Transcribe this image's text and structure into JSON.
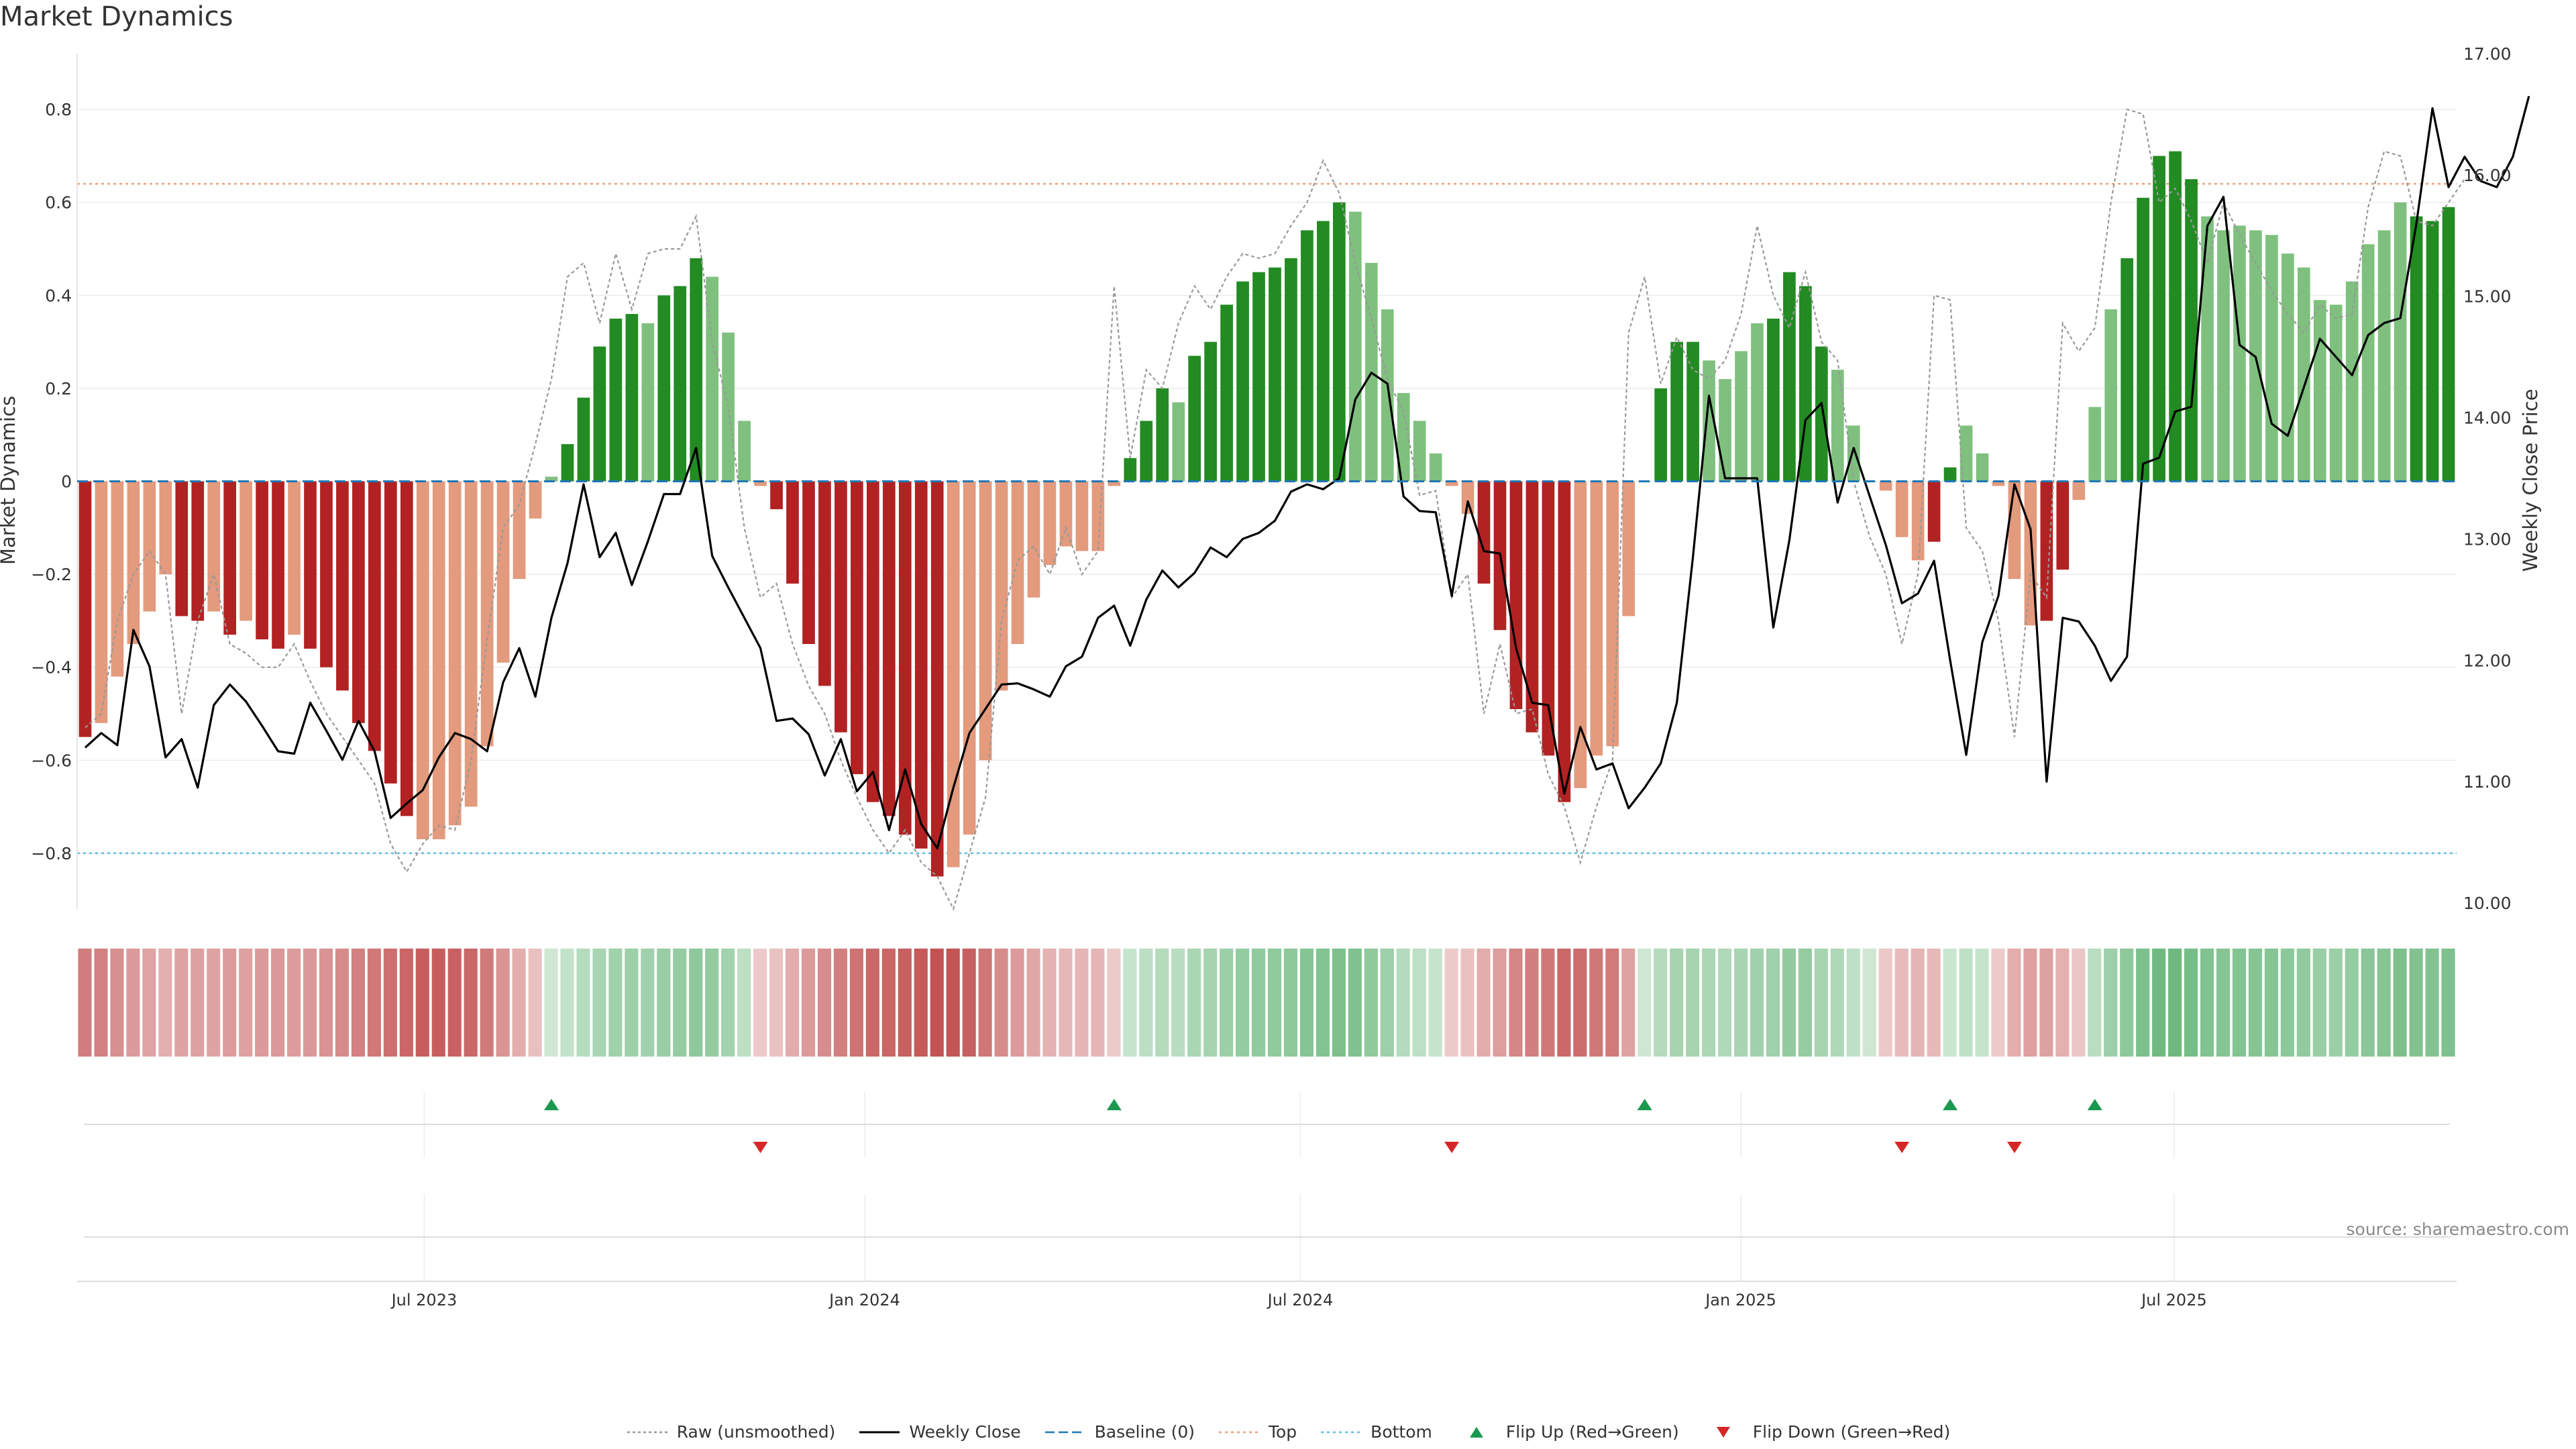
{
  "title": "Market Dynamics",
  "source": "source: sharemaestro.com",
  "colors": {
    "green_strong": "#228b22",
    "green_light": "#7fc07f",
    "red_strong": "#b22222",
    "red_light": "#e39a7d",
    "price": "#000000",
    "raw": "#999999",
    "baseline": "#1f77b4",
    "top": "#e8a07e",
    "bottom": "#5bc0de",
    "flip_up": "#1a9850",
    "flip_down": "#d62728"
  },
  "legend": [
    {
      "key": "raw",
      "label": "Raw (unsmoothed)"
    },
    {
      "key": "price",
      "label": "Weekly Close"
    },
    {
      "key": "baseline",
      "label": "Baseline (0)"
    },
    {
      "key": "top",
      "label": "Top"
    },
    {
      "key": "bottom",
      "label": "Bottom"
    },
    {
      "key": "flip_up",
      "label": "Flip Up (Red→Green)"
    },
    {
      "key": "flip_down",
      "label": "Flip Down (Green→Red)"
    }
  ],
  "chart_data": {
    "type": "bar",
    "title": "Market Dynamics",
    "ylabel": "Market Dynamics",
    "y2label": "Weekly Close Price",
    "ylim": [
      -0.92,
      0.92
    ],
    "y2lim": [
      9.95,
      17.0
    ],
    "yticks": [
      -0.8,
      -0.6,
      -0.4,
      -0.2,
      0,
      0.2,
      0.4,
      0.6,
      0.8
    ],
    "yticklabels": [
      "−0.8",
      "−0.6",
      "−0.4",
      "−0.2",
      "0",
      "0.2",
      "0.4",
      "0.6",
      "0.8"
    ],
    "y2ticks": [
      10,
      11,
      12,
      13,
      14,
      15,
      16,
      17
    ],
    "y2ticklabels": [
      "10.00",
      "11.00",
      "12.00",
      "13.00",
      "14.00",
      "15.00",
      "16.00",
      "17.00"
    ],
    "x_start": "2023-02-06",
    "x_end": "2025-10-27",
    "xticks": [
      {
        "date": "2023-07-01",
        "label": "Jul 2023"
      },
      {
        "date": "2024-01-01",
        "label": "Jan 2024"
      },
      {
        "date": "2024-07-01",
        "label": "Jul 2024"
      },
      {
        "date": "2025-01-01",
        "label": "Jan 2025"
      },
      {
        "date": "2025-07-01",
        "label": "Jul 2025"
      }
    ],
    "top_level": 0.64,
    "bottom_level": -0.8,
    "baseline": 0,
    "dynamics": [
      -0.55,
      -0.52,
      -0.42,
      -0.35,
      -0.28,
      -0.2,
      -0.29,
      -0.3,
      -0.28,
      -0.33,
      -0.3,
      -0.34,
      -0.36,
      -0.33,
      -0.36,
      -0.4,
      -0.45,
      -0.52,
      -0.58,
      -0.65,
      -0.72,
      -0.77,
      -0.77,
      -0.74,
      -0.7,
      -0.57,
      -0.39,
      -0.21,
      -0.08,
      0.01,
      0.08,
      0.18,
      0.29,
      0.35,
      0.36,
      0.34,
      0.4,
      0.42,
      0.48,
      0.44,
      0.32,
      0.13,
      -0.01,
      -0.06,
      -0.22,
      -0.35,
      -0.44,
      -0.54,
      -0.63,
      -0.69,
      -0.72,
      -0.76,
      -0.79,
      -0.85,
      -0.83,
      -0.76,
      -0.6,
      -0.45,
      -0.35,
      -0.25,
      -0.18,
      -0.14,
      -0.15,
      -0.15,
      -0.01,
      0.05,
      0.13,
      0.2,
      0.17,
      0.27,
      0.3,
      0.38,
      0.43,
      0.45,
      0.46,
      0.48,
      0.54,
      0.56,
      0.6,
      0.58,
      0.47,
      0.37,
      0.19,
      0.13,
      0.06,
      -0.01,
      -0.07,
      -0.22,
      -0.32,
      -0.49,
      -0.54,
      -0.59,
      -0.69,
      -0.66,
      -0.59,
      -0.57,
      -0.29,
      0.0,
      0.2,
      0.3,
      0.3,
      0.26,
      0.22,
      0.28,
      0.34,
      0.35,
      0.45,
      0.42,
      0.29,
      0.24,
      0.12,
      0.0,
      -0.02,
      -0.12,
      -0.17,
      -0.13,
      0.03,
      0.12,
      0.06,
      -0.01,
      -0.21,
      -0.31,
      -0.3,
      -0.19,
      -0.04,
      0.16,
      0.37,
      0.48,
      0.61,
      0.7,
      0.71,
      0.65,
      0.57,
      0.54,
      0.55,
      0.54,
      0.53,
      0.49,
      0.46,
      0.39,
      0.38,
      0.43,
      0.51,
      0.54,
      0.6,
      0.57,
      0.56,
      0.59
    ],
    "shade": [
      0,
      1,
      1,
      1,
      1,
      1,
      0,
      0,
      1,
      0,
      1,
      0,
      0,
      1,
      0,
      0,
      0,
      0,
      0,
      0,
      0,
      1,
      1,
      1,
      1,
      1,
      1,
      1,
      1,
      1,
      0,
      0,
      0,
      0,
      0,
      1,
      0,
      0,
      0,
      1,
      1,
      1,
      1,
      0,
      0,
      0,
      0,
      0,
      0,
      0,
      0,
      0,
      0,
      0,
      1,
      1,
      1,
      1,
      1,
      1,
      1,
      1,
      1,
      1,
      1,
      0,
      0,
      0,
      1,
      0,
      0,
      0,
      0,
      0,
      0,
      0,
      0,
      0,
      0,
      1,
      1,
      1,
      1,
      1,
      1,
      1,
      1,
      0,
      0,
      0,
      0,
      0,
      0,
      1,
      1,
      1,
      1,
      1,
      0,
      0,
      0,
      1,
      1,
      1,
      1,
      0,
      0,
      0,
      0,
      1,
      1,
      1,
      1,
      1,
      1,
      0,
      0,
      1,
      1,
      1,
      1,
      1,
      0,
      0,
      1,
      1,
      1,
      0,
      0,
      0,
      0,
      0,
      1,
      1,
      1,
      1,
      1,
      1,
      1,
      1,
      1,
      1,
      1,
      1,
      1,
      0,
      0,
      0,
      0,
      1,
      1,
      0
    ],
    "raw": [
      -0.53,
      -0.5,
      -0.3,
      -0.2,
      -0.15,
      -0.2,
      -0.5,
      -0.3,
      -0.2,
      -0.35,
      -0.37,
      -0.4,
      -0.4,
      -0.35,
      -0.43,
      -0.5,
      -0.55,
      -0.6,
      -0.65,
      -0.78,
      -0.84,
      -0.78,
      -0.74,
      -0.75,
      -0.6,
      -0.34,
      -0.1,
      -0.05,
      0.08,
      0.22,
      0.44,
      0.47,
      0.34,
      0.49,
      0.37,
      0.49,
      0.5,
      0.5,
      0.57,
      0.3,
      0.16,
      -0.1,
      -0.25,
      -0.22,
      -0.35,
      -0.44,
      -0.5,
      -0.6,
      -0.68,
      -0.75,
      -0.8,
      -0.75,
      -0.82,
      -0.85,
      -0.92,
      -0.8,
      -0.68,
      -0.3,
      -0.17,
      -0.14,
      -0.2,
      -0.1,
      -0.2,
      -0.15,
      0.42,
      0.05,
      0.24,
      0.2,
      0.34,
      0.42,
      0.37,
      0.44,
      0.49,
      0.48,
      0.49,
      0.55,
      0.6,
      0.69,
      0.62,
      0.47,
      0.35,
      0.22,
      0.15,
      -0.03,
      -0.02,
      -0.25,
      -0.2,
      -0.5,
      -0.35,
      -0.5,
      -0.49,
      -0.63,
      -0.7,
      -0.82,
      -0.7,
      -0.6,
      0.32,
      0.44,
      0.21,
      0.31,
      0.24,
      0.22,
      0.26,
      0.36,
      0.55,
      0.4,
      0.33,
      0.45,
      0.3,
      0.26,
      0.0,
      -0.12,
      -0.2,
      -0.35,
      -0.2,
      0.4,
      0.39,
      -0.1,
      -0.15,
      -0.3,
      -0.55,
      -0.2,
      -0.25,
      0.34,
      0.28,
      0.33,
      0.6,
      0.8,
      0.79,
      0.6,
      0.63,
      0.56,
      0.47,
      0.6,
      0.53,
      0.47,
      0.41,
      0.36,
      0.32,
      0.38,
      0.35,
      0.36,
      0.59,
      0.71,
      0.7,
      0.56,
      0.55,
      0.6,
      0.65
    ],
    "weekly_close": [
      11.28,
      11.4,
      11.3,
      12.25,
      11.95,
      11.2,
      11.35,
      10.95,
      11.63,
      11.8,
      11.66,
      11.46,
      11.25,
      11.23,
      11.65,
      11.42,
      11.18,
      11.5,
      11.25,
      10.7,
      10.82,
      10.93,
      11.2,
      11.4,
      11.35,
      11.25,
      11.82,
      12.1,
      11.7,
      12.35,
      12.8,
      13.45,
      12.85,
      13.05,
      12.62,
      12.98,
      13.37,
      13.37,
      13.75,
      12.86,
      12.6,
      12.35,
      12.1,
      11.5,
      11.52,
      11.39,
      11.05,
      11.35,
      10.92,
      11.08,
      10.6,
      11.1,
      10.65,
      10.45,
      10.95,
      11.4,
      11.6,
      11.8,
      11.81,
      11.76,
      11.7,
      11.95,
      12.03,
      12.35,
      12.45,
      12.12,
      12.5,
      12.74,
      12.6,
      12.72,
      12.93,
      12.85,
      13.0,
      13.05,
      13.15,
      13.39,
      13.45,
      13.41,
      13.5,
      14.15,
      14.37,
      14.28,
      13.35,
      13.23,
      13.22,
      12.53,
      13.31,
      12.9,
      12.88,
      12.1,
      11.65,
      11.63,
      10.9,
      11.45,
      11.1,
      11.15,
      10.78,
      10.95,
      11.15,
      11.65,
      12.85,
      14.18,
      13.5,
      13.5,
      13.5,
      12.27,
      12.99,
      13.98,
      14.12,
      13.3,
      13.75,
      13.35,
      12.95,
      12.47,
      12.55,
      12.82,
      12.0,
      11.22,
      12.15,
      12.53,
      13.45,
      13.08,
      11.0,
      12.35,
      12.32,
      12.12,
      11.83,
      12.03,
      13.62,
      13.67,
      14.05,
      14.09,
      15.58,
      15.82,
      14.6,
      14.5,
      13.95,
      13.85,
      14.25,
      14.65,
      14.5,
      14.35,
      14.68,
      14.78,
      14.82,
      15.6,
      16.55,
      15.9,
      16.15,
      15.95,
      15.9,
      16.15,
      16.65
    ],
    "flips": [
      {
        "type": "up",
        "index": 29
      },
      {
        "type": "up",
        "index": 64
      },
      {
        "type": "up",
        "index": 97
      },
      {
        "type": "up",
        "index": 116
      },
      {
        "type": "up",
        "index": 125
      },
      {
        "type": "down",
        "index": 42
      },
      {
        "type": "down",
        "index": 85
      },
      {
        "type": "down",
        "index": 113
      },
      {
        "type": "down",
        "index": 120
      }
    ]
  }
}
